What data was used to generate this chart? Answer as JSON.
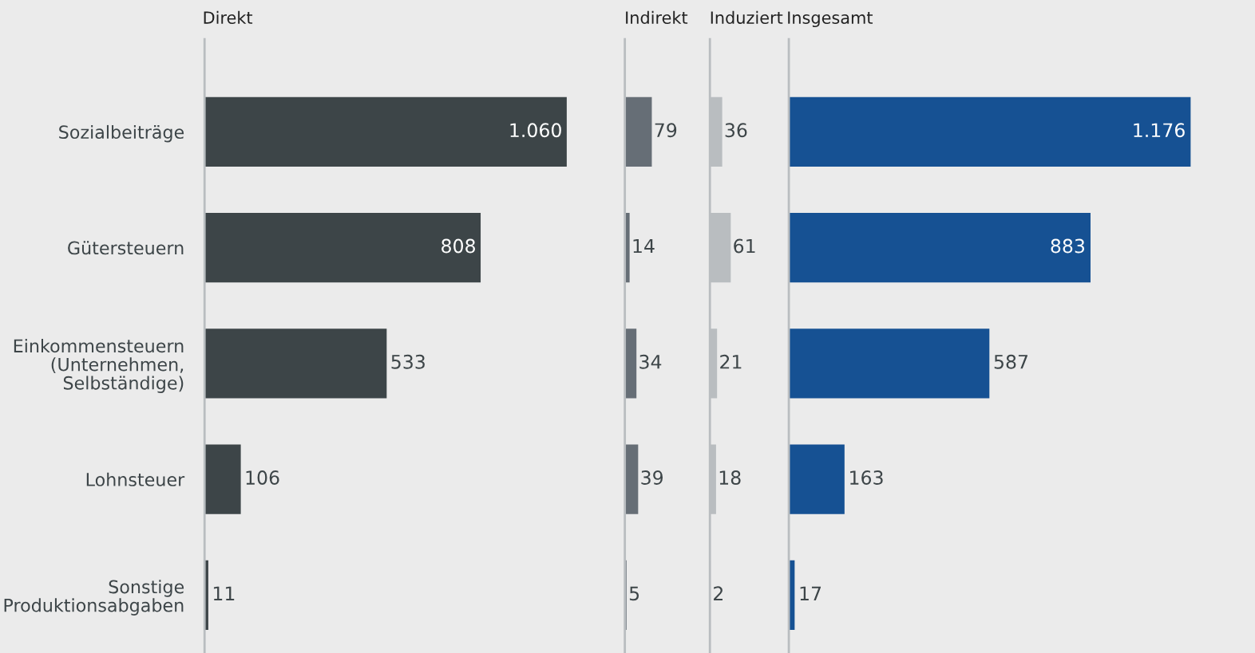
{
  "chart_data": [
    {
      "type": "bar",
      "orientation": "horizontal",
      "title": "Direkt",
      "tick_labels": "y",
      "categories": [
        "Sozialbeiträge",
        "Gütersteuern",
        "Einkommensteuern\n(Unternehmen,\nSelbständige)",
        "Lohnsteuer",
        "Sonstige\nProduktionsabgaben"
      ],
      "values": [
        1060,
        808,
        533,
        106,
        11
      ],
      "value_labels": [
        "1.060",
        "808",
        "533",
        "106",
        "11"
      ],
      "color": "#3d4548"
    },
    {
      "type": "bar",
      "orientation": "horizontal",
      "title": "Indirekt",
      "tick_labels": false,
      "values": [
        79,
        14,
        34,
        39,
        5
      ],
      "value_labels": [
        "79",
        "14",
        "34",
        "39",
        "5"
      ],
      "color": "#666e76"
    },
    {
      "type": "bar",
      "orientation": "horizontal",
      "title": "Induziert",
      "tick_labels": false,
      "values": [
        36,
        61,
        21,
        18,
        2
      ],
      "value_labels": [
        "36",
        "61",
        "21",
        "18",
        "2"
      ],
      "color": "#b9bdc0"
    },
    {
      "type": "bar",
      "orientation": "horizontal",
      "title": "Insgesamt",
      "tick_labels": false,
      "values": [
        1176,
        883,
        587,
        163,
        17
      ],
      "value_labels": [
        "1.176",
        "883",
        "587",
        "163",
        "17"
      ],
      "color": "#165193"
    }
  ]
}
